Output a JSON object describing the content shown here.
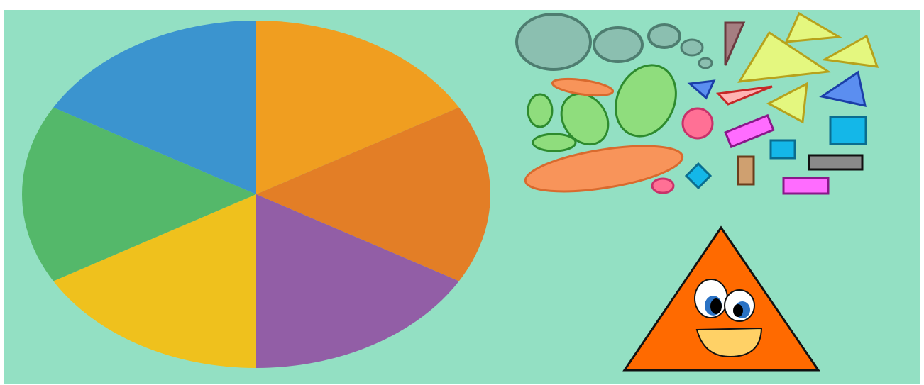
{
  "scene": {
    "background_color": "#93e0c3",
    "pie": {
      "segments": [
        {
          "color": "#f09e20"
        },
        {
          "color": "#e37e26"
        },
        {
          "color": "#925ea6"
        },
        {
          "color": "#efc11d"
        },
        {
          "color": "#54b86a"
        },
        {
          "color": "#3b94cf"
        }
      ]
    },
    "character": {
      "body_color": "#ff6a00",
      "mouth_color": "#ffd166",
      "eye_iris_color": "#2a72c4"
    },
    "shape_colors": {
      "gray_circle": "#8bbfb0",
      "gray_stroke": "#4e7d70",
      "green": "#8fdd7d",
      "green_stroke": "#2e8b2e",
      "salmon": "#f8945a",
      "yellow": "#e4f77f",
      "yellow_stroke": "#b7a21c",
      "blue": "#5b8ef0",
      "cyan": "#14b7e8",
      "pink": "#ff7095",
      "magenta": "#ff6cff",
      "tan": "#cfa070",
      "gray_rect": "#8a8a8a",
      "brown_tri": "#a57e81"
    }
  }
}
